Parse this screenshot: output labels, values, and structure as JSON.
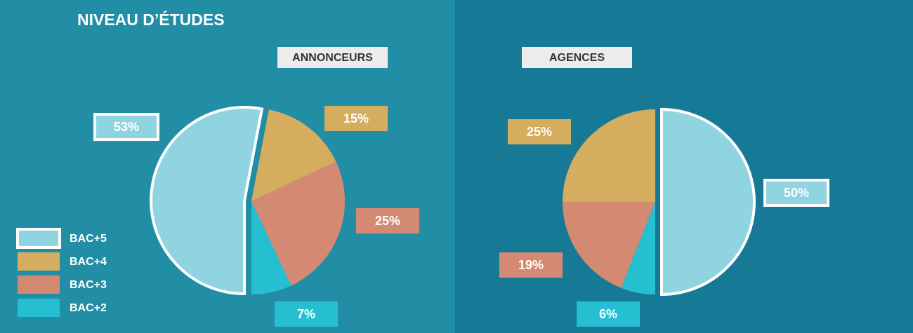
{
  "title": "NIVEAU D’ÉTUDES",
  "chart_data": [
    {
      "type": "pie",
      "title": "ANNONCEURS",
      "categories": [
        "BAC+5",
        "BAC+4",
        "BAC+3",
        "BAC+2"
      ],
      "values": [
        53,
        15,
        25,
        7
      ],
      "value_labels": [
        "53%",
        "15%",
        "25%",
        "7%"
      ],
      "colors": [
        "#8fd4e0",
        "#d4ae5e",
        "#d48a72",
        "#26bfd2"
      ]
    },
    {
      "type": "pie",
      "title": "AGENCES",
      "categories": [
        "BAC+5",
        "BAC+4",
        "BAC+3",
        "BAC+2"
      ],
      "values": [
        50,
        25,
        19,
        6
      ],
      "value_labels": [
        "50%",
        "25%",
        "19%",
        "6%"
      ],
      "colors": [
        "#8fd4e0",
        "#d4ae5e",
        "#d48a72",
        "#26bfd2"
      ]
    }
  ]
}
